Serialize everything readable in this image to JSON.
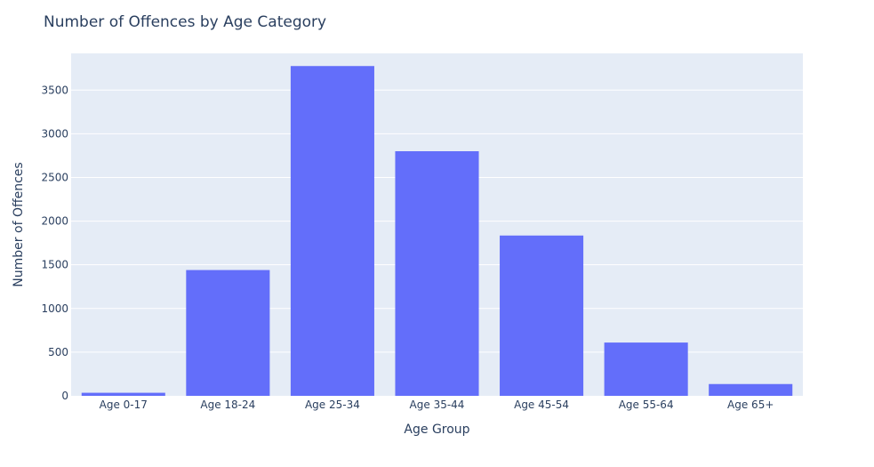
{
  "chart_data": {
    "type": "bar",
    "title": "Number of Offences by Age Category",
    "xlabel": "Age Group",
    "ylabel": "Number of Offences",
    "categories": [
      "Age 0-17",
      "Age 18-24",
      "Age 25-34",
      "Age 35-44",
      "Age 45-54",
      "Age 55-64",
      "Age 65+"
    ],
    "values": [
      35,
      1440,
      3775,
      2800,
      1835,
      610,
      135
    ],
    "ylim": [
      0,
      3920
    ],
    "yticks": [
      0,
      500,
      1000,
      1500,
      2000,
      2500,
      3000,
      3500
    ],
    "grid": true,
    "colors": {
      "plot_bg": "#e5ecf6",
      "bar": "#636efa",
      "grid": "#ffffff",
      "text": "#2a3f5f"
    }
  }
}
